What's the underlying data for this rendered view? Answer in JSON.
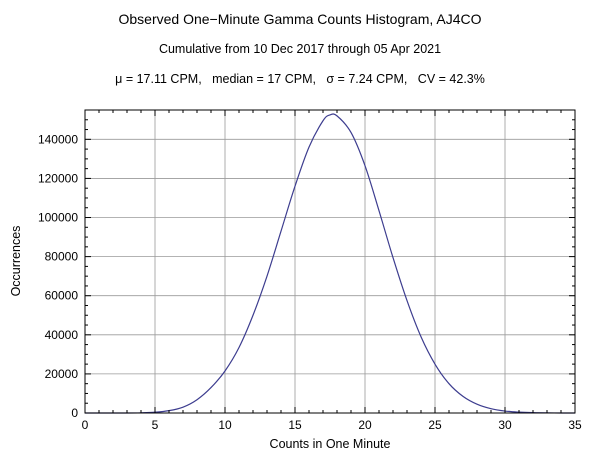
{
  "header": {
    "title": "Observed One−Minute Gamma Counts Histogram, AJ4CO",
    "subtitle": "Cumulative from 10 Dec 2017 through 05 Apr 2021",
    "stats": "μ = 17.11 CPM,   median = 17 CPM,   σ = 7.24 CPM,   CV = 42.3%"
  },
  "chart_data": {
    "type": "line",
    "title": "Observed One−Minute Gamma Counts Histogram, AJ4CO",
    "subtitle": "Cumulative from 10 Dec 2017 through 05 Apr 2021",
    "xlabel": "Counts in One Minute",
    "ylabel": "Occurrences",
    "xlim": [
      0,
      35
    ],
    "ylim": [
      0,
      155000
    ],
    "x_ticks": [
      0,
      5,
      10,
      15,
      20,
      25,
      30,
      35
    ],
    "y_ticks": [
      0,
      20000,
      40000,
      60000,
      80000,
      100000,
      120000,
      140000
    ],
    "x_minor_step": 1,
    "y_minor_step": 5000,
    "grid": true,
    "legend": "none",
    "line_color": "#3d3d8f",
    "grid_color": "#9a9a9a",
    "frame_color": "#000000",
    "x": [
      0,
      1,
      2,
      3,
      4,
      5,
      6,
      7,
      8,
      9,
      10,
      11,
      12,
      13,
      14,
      15,
      16,
      17,
      17.5,
      18,
      19,
      20,
      21,
      22,
      23,
      24,
      25,
      26,
      27,
      28,
      29,
      30,
      31,
      32,
      33,
      34,
      35
    ],
    "y": [
      0,
      0,
      0,
      0,
      100,
      400,
      1200,
      3000,
      6800,
      13000,
      21500,
      33500,
      50000,
      70000,
      93000,
      116000,
      136000,
      149500,
      152500,
      152000,
      143500,
      126500,
      103500,
      79500,
      57500,
      39000,
      25000,
      15000,
      8500,
      4500,
      2200,
      1000,
      450,
      180,
      60,
      15,
      0
    ],
    "stats": {
      "mu_cpm": 17.11,
      "median_cpm": 17,
      "sigma_cpm": 7.24,
      "cv_percent": 42.3
    }
  }
}
